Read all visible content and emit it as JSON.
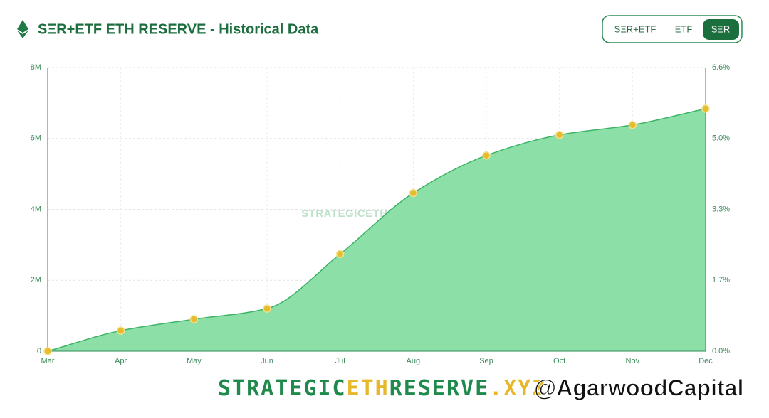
{
  "header": {
    "title": "SΞR+ETF ETH RESERVE - Historical Data"
  },
  "controls": {
    "toggles": [
      "SΞR+ETF",
      "ETF",
      "SΞR"
    ],
    "active": 2
  },
  "chart_data": {
    "type": "area",
    "watermark": "STRATEGICETHRESERVE.XYZ",
    "categories": [
      "Mar",
      "Apr",
      "May",
      "Jun",
      "Jul",
      "Aug",
      "Sep",
      "Oct",
      "Nov",
      "Dec"
    ],
    "values": [
      0,
      580000,
      900000,
      1200000,
      2740000,
      4460000,
      5520000,
      6100000,
      6380000,
      6840000
    ],
    "color": "#8ddfa8",
    "line_color": "#3cb465",
    "point_color": "#e6bc2f",
    "ylim": [
      0,
      8000000
    ],
    "yticks": [
      0,
      {
        "value": 2000000,
        "label": "2M"
      },
      {
        "value": 4000000,
        "label": "4M"
      },
      {
        "value": 6000000,
        "label": "6M"
      },
      {
        "value": 8000000,
        "label": "8M"
      }
    ],
    "y2lim": [
      0,
      6.6
    ],
    "y2ticks": [
      {
        "value": 0,
        "label": "0.0%"
      },
      {
        "value": 1.65,
        "label": "1.7%"
      },
      {
        "value": 3.3,
        "label": "3.3%"
      },
      {
        "value": 4.95,
        "label": "5.0%"
      },
      {
        "value": 6.6,
        "label": "6.6%"
      }
    ],
    "grid": true
  },
  "footer": {
    "brand": [
      "STRATEGIC",
      "ETH",
      "RESERVE",
      ".XYZ"
    ],
    "handle": "@AgarwoodCapital"
  }
}
